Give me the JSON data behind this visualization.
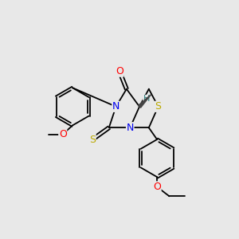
{
  "background_color": "#e8e8e8",
  "fig_size": [
    3.0,
    3.0
  ],
  "dpi": 100,
  "atom_colors": {
    "O": "#ff0000",
    "N": "#0000ee",
    "S_yellow": "#bbaa00",
    "C": "#000000",
    "H": "#227777"
  }
}
